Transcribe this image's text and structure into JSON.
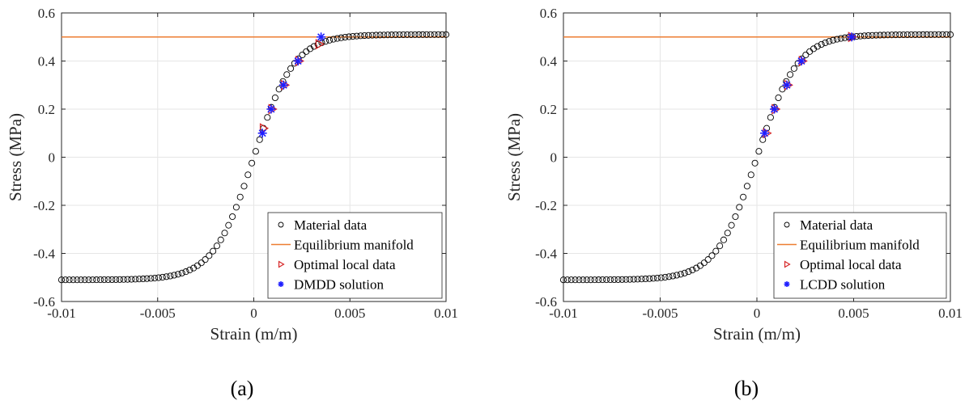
{
  "colors": {
    "material": "#000000",
    "equilibrium": "#ED7D31",
    "optimal": "#D62728",
    "solution": "#1F1FFF",
    "grid": "#E6E6E6",
    "axis": "#262626"
  },
  "chart_data": [
    {
      "type": "scatter",
      "caption": "(a)",
      "xlabel": "Strain (m/m)",
      "ylabel": "Stress (MPa)",
      "xlim": [
        -0.01,
        0.01
      ],
      "ylim": [
        -0.6,
        0.6
      ],
      "xticks": [
        -0.01,
        -0.005,
        0,
        0.005,
        0.01
      ],
      "xtick_labels": [
        "-0.01",
        "-0.005",
        "0",
        "0.005",
        "0.01"
      ],
      "yticks": [
        -0.6,
        -0.4,
        -0.2,
        0,
        0.2,
        0.4,
        0.6
      ],
      "ytick_labels": [
        "-0.6",
        "-0.4",
        "-0.2",
        "0",
        "0.2",
        "0.4",
        "0.6"
      ],
      "grid": true,
      "legend_position": "bottom-right",
      "material_data": {
        "name": "Material data",
        "model": "tanh",
        "amplitude": 0.51,
        "strain_scale": 0.0021,
        "x_start": -0.01,
        "x_end": 0.01,
        "count": 100
      },
      "equilibrium_manifold": {
        "name": "Equilibrium manifold",
        "y": 0.5
      },
      "series": [
        {
          "name": "Optimal local data",
          "marker": "triangle-right",
          "x": [
            0.0005,
            0.00095,
            0.0016,
            0.00235,
            0.0034
          ],
          "y": [
            0.12,
            0.2,
            0.3,
            0.4,
            0.47
          ]
        },
        {
          "name": "DMDD solution",
          "marker": "asterisk",
          "x": [
            0.00045,
            0.0009,
            0.00155,
            0.0023,
            0.0035
          ],
          "y": [
            0.1,
            0.2,
            0.3,
            0.4,
            0.5
          ]
        }
      ]
    },
    {
      "type": "scatter",
      "caption": "(b)",
      "xlabel": "Strain (m/m)",
      "ylabel": "Stress (MPa)",
      "xlim": [
        -0.01,
        0.01
      ],
      "ylim": [
        -0.6,
        0.6
      ],
      "xticks": [
        -0.01,
        -0.005,
        0,
        0.005,
        0.01
      ],
      "xtick_labels": [
        "-0.01",
        "-0.005",
        "0",
        "0.005",
        "0.01"
      ],
      "yticks": [
        -0.6,
        -0.4,
        -0.2,
        0,
        0.2,
        0.4,
        0.6
      ],
      "ytick_labels": [
        "-0.6",
        "-0.4",
        "-0.2",
        "0",
        "0.2",
        "0.4",
        "0.6"
      ],
      "grid": true,
      "legend_position": "bottom-right",
      "material_data": {
        "name": "Material data",
        "model": "tanh",
        "amplitude": 0.51,
        "strain_scale": 0.0021,
        "x_start": -0.01,
        "x_end": 0.01,
        "count": 100
      },
      "equilibrium_manifold": {
        "name": "Equilibrium manifold",
        "y": 0.5
      },
      "series": [
        {
          "name": "Optimal local data",
          "marker": "triangle-right",
          "x": [
            0.0005,
            0.00095,
            0.0016,
            0.00235,
            0.0049
          ],
          "y": [
            0.1,
            0.2,
            0.3,
            0.4,
            0.5
          ]
        },
        {
          "name": "LCDD solution",
          "marker": "asterisk",
          "x": [
            0.0004,
            0.0009,
            0.00155,
            0.0023,
            0.0049
          ],
          "y": [
            0.1,
            0.2,
            0.3,
            0.4,
            0.5
          ]
        }
      ]
    }
  ]
}
